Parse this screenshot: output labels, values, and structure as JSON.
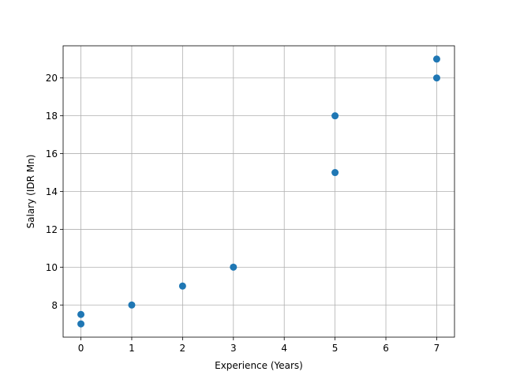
{
  "chart_data": {
    "type": "scatter",
    "title": "",
    "xlabel": "Experience (Years)",
    "ylabel": "Salary (IDR Mn)",
    "xlim": [
      -0.35,
      7.35
    ],
    "ylim": [
      6.3,
      21.7
    ],
    "x_ticks": [
      0,
      1,
      2,
      3,
      4,
      5,
      6,
      7
    ],
    "x_tick_labels": [
      "0",
      "1",
      "2",
      "3",
      "4",
      "5",
      "6",
      "7"
    ],
    "y_ticks": [
      8,
      10,
      12,
      14,
      16,
      18,
      20
    ],
    "y_tick_labels": [
      "8",
      "10",
      "12",
      "14",
      "16",
      "18",
      "20"
    ],
    "grid": true,
    "legend": "none",
    "marker_color": "#1f77b4",
    "series": [
      {
        "points": [
          {
            "x": 0,
            "y": 7.5
          },
          {
            "x": 0,
            "y": 7
          },
          {
            "x": 1,
            "y": 8
          },
          {
            "x": 2,
            "y": 9
          },
          {
            "x": 3,
            "y": 10
          },
          {
            "x": 5,
            "y": 18
          },
          {
            "x": 5,
            "y": 15
          },
          {
            "x": 7,
            "y": 21
          },
          {
            "x": 7,
            "y": 20
          }
        ]
      }
    ]
  }
}
